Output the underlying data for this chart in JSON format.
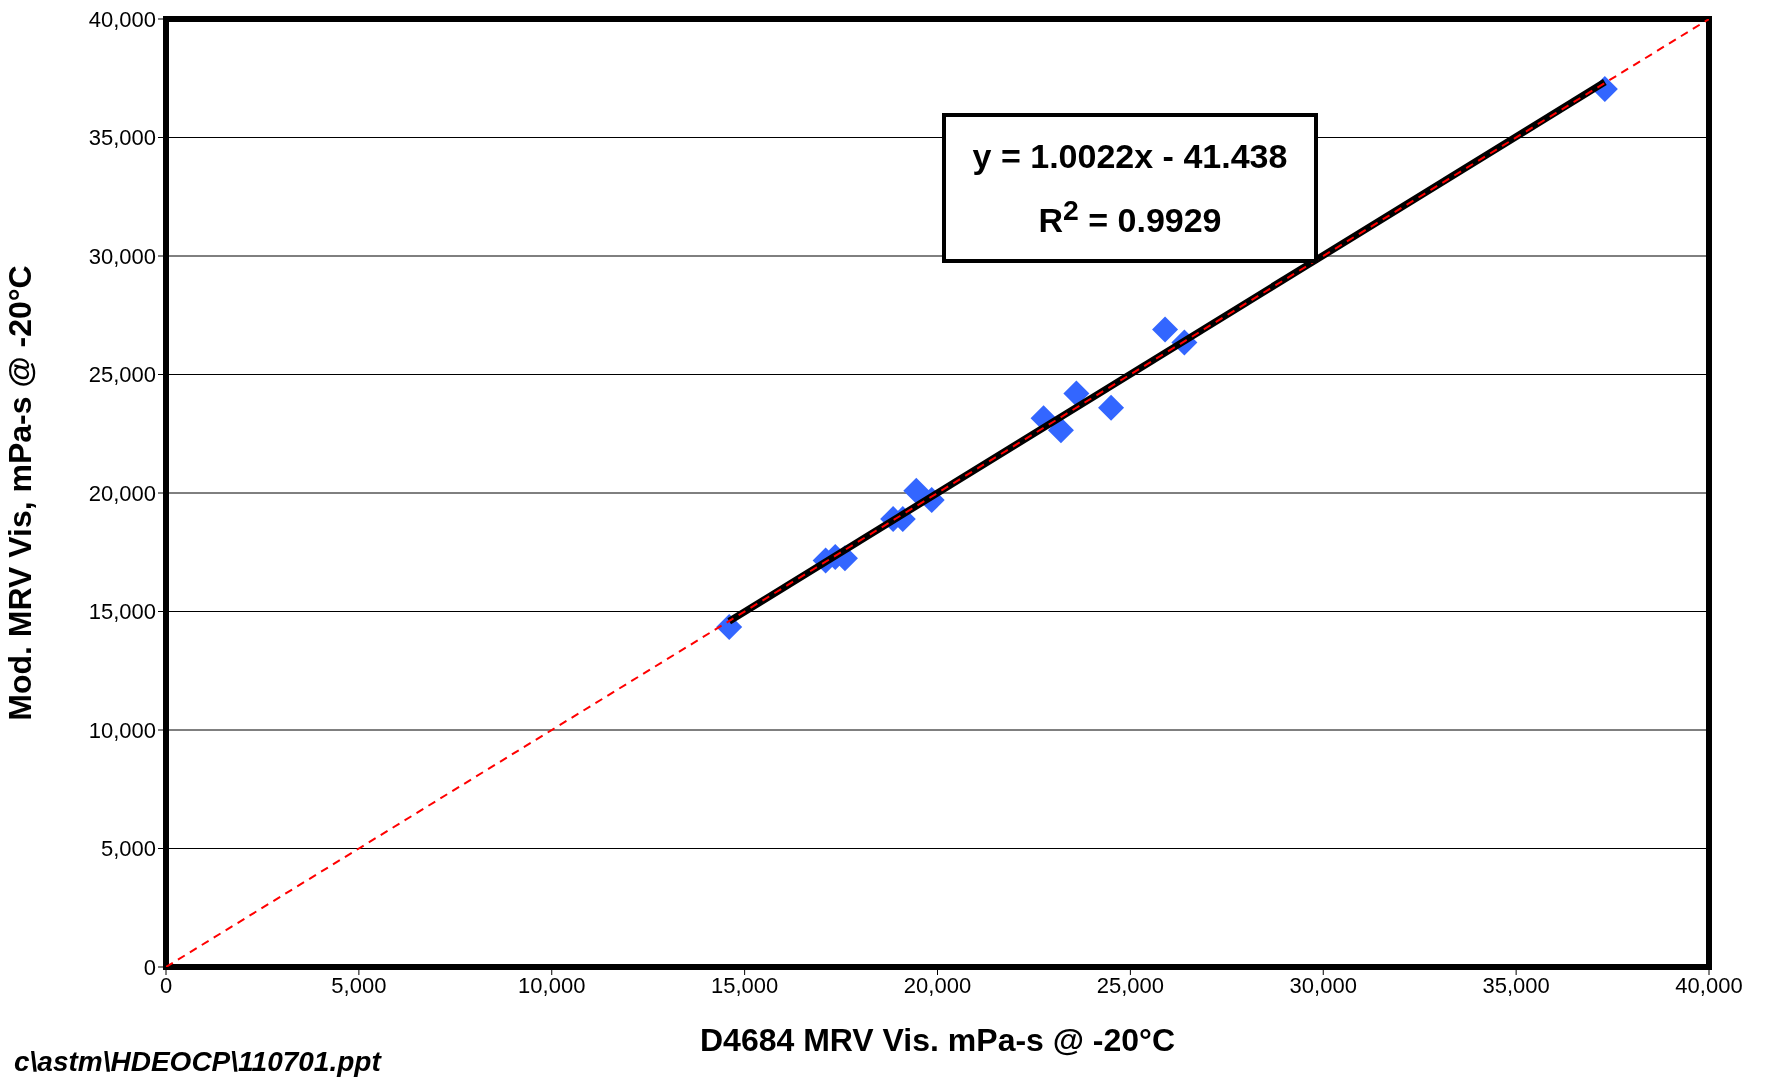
{
  "chart_data": {
    "type": "scatter",
    "xlabel": "D4684 MRV Vis. mPa-s @ -20°C",
    "ylabel": "Mod. MRV Vis, mPa-s @ -20°C",
    "xlim": [
      0,
      40000
    ],
    "ylim": [
      0,
      40000
    ],
    "xticks": [
      {
        "value": 0,
        "label": "0"
      },
      {
        "value": 5000,
        "label": "5,000"
      },
      {
        "value": 10000,
        "label": "10,000"
      },
      {
        "value": 15000,
        "label": "15,000"
      },
      {
        "value": 20000,
        "label": "20,000"
      },
      {
        "value": 25000,
        "label": "25,000"
      },
      {
        "value": 30000,
        "label": "30,000"
      },
      {
        "value": 35000,
        "label": "35,000"
      },
      {
        "value": 40000,
        "label": "40,000"
      }
    ],
    "yticks": [
      {
        "value": 0,
        "label": "0"
      },
      {
        "value": 5000,
        "label": "5,000"
      },
      {
        "value": 10000,
        "label": "10,000"
      },
      {
        "value": 15000,
        "label": "15,000"
      },
      {
        "value": 20000,
        "label": "20,000"
      },
      {
        "value": 25000,
        "label": "25,000"
      },
      {
        "value": 30000,
        "label": "30,000"
      },
      {
        "value": 35000,
        "label": "35,000"
      },
      {
        "value": 40000,
        "label": "40,000"
      }
    ],
    "grid": "y",
    "marker": "diamond",
    "series": [
      {
        "color": "#3366ff",
        "x": [
          14600,
          17100,
          17350,
          17600,
          18850,
          19100,
          19450,
          19850,
          22750,
          23200,
          23600,
          24500,
          25900,
          26400,
          37300
        ],
        "values": [
          14350,
          17150,
          17300,
          17250,
          18900,
          18900,
          20100,
          19700,
          23150,
          22650,
          24200,
          23600,
          26900,
          26350,
          37050
        ]
      },
      {
        "type": "line",
        "color": "#000000",
        "line_style": "solid",
        "marker": "none",
        "x": [
          14600,
          37300
        ],
        "values": [
          14590,
          37340
        ]
      },
      {
        "type": "line",
        "color": "#ff0000",
        "line_style": "dashed",
        "marker": "none",
        "x": [
          0,
          40000
        ],
        "values": [
          0,
          40000
        ]
      }
    ],
    "annotations": [
      "y = 1.0022x - 41.438\nR$^{2}$ = 0.9929",
      "c\\astm\\HDEOCP\\110701.ppt"
    ]
  }
}
